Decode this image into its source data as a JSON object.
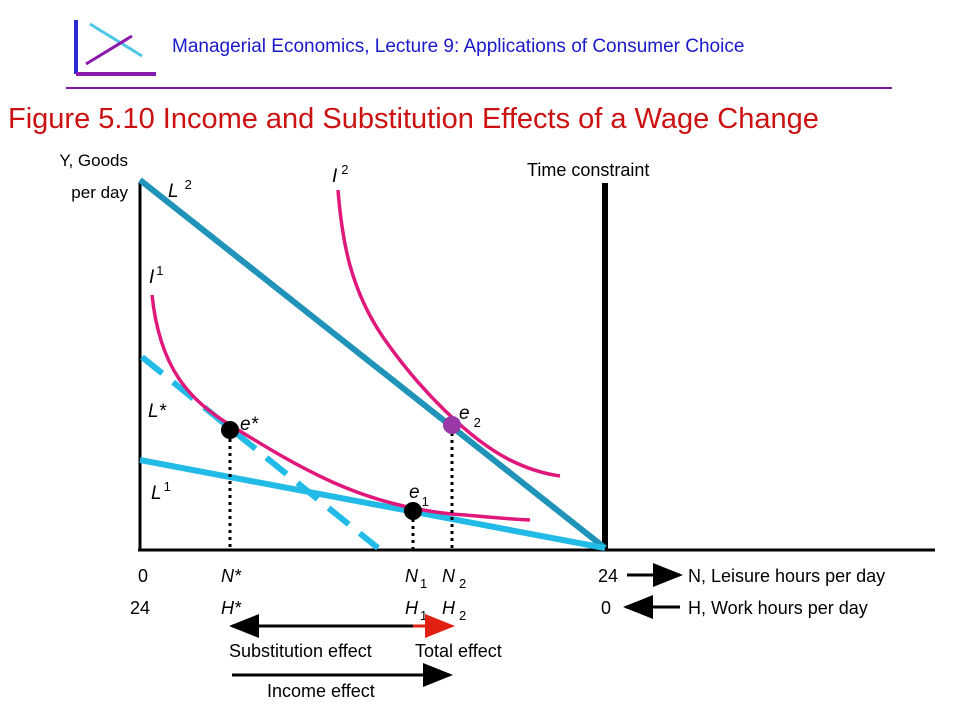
{
  "header": {
    "lecture_title": "Managerial Economics, Lecture 9: Applications of Consumer Choice"
  },
  "figure": {
    "title": "Figure 5.10  Income and Substitution Effects of a Wage Change"
  },
  "diagram": {
    "y_axis_label_line1": "Y, Goods",
    "y_axis_label_line2": "per day",
    "time_constraint_label": "Time constraint",
    "curves": {
      "L2": {
        "base": "L",
        "sub": "2"
      },
      "L1": {
        "base": "L",
        "sub": "1"
      },
      "Lstar": "L*",
      "I1": {
        "base": "I",
        "sub": "1"
      },
      "I2": {
        "base": "I",
        "sub": "2"
      }
    },
    "points": {
      "estar": "e*",
      "e1": {
        "base": "e",
        "sub": "1"
      },
      "e2": {
        "base": "e",
        "sub": "2"
      }
    },
    "x_axis_top": {
      "origin": "0",
      "nstar": "N*",
      "n1": {
        "base": "N",
        "sub": "1"
      },
      "n2": {
        "base": "N",
        "sub": "2"
      },
      "end": "24",
      "label": "N, Leisure hours per day"
    },
    "x_axis_bottom": {
      "origin": "24",
      "hstar": "H*",
      "h1": {
        "base": "H",
        "sub": "1"
      },
      "h2": {
        "base": "H",
        "sub": "2"
      },
      "end": "0",
      "label": "H, Work hours per day"
    },
    "effects": {
      "substitution": "Substitution effect",
      "total": "Total effect",
      "income": "Income effect"
    },
    "colors": {
      "L2": "#1f93b8",
      "L1": "#22bbe8",
      "Lstar": "#22bbe8",
      "indifference": "#e0187c",
      "e2_point": "#9a38a8",
      "total_effect_arrow": "#e02010",
      "header_text": "#1a1acc",
      "title_text": "#cc1111"
    }
  }
}
